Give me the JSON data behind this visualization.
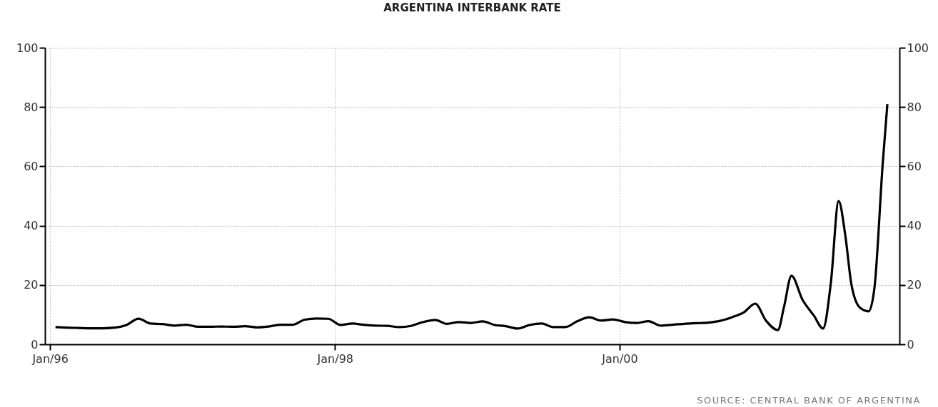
{
  "chart_data": {
    "type": "line",
    "title": "ARGENTINA INTERBANK RATE",
    "annotations": [
      "SOURCE: CENTRAL BANK OF ARGENTINA"
    ],
    "x": [
      "1996-01-15",
      "1996-02-15",
      "1996-03-15",
      "1996-04-15",
      "1996-05-15",
      "1996-06-15",
      "1996-07-15",
      "1996-08-15",
      "1996-09-15",
      "1996-10-15",
      "1996-11-15",
      "1996-12-15",
      "1997-01-15",
      "1997-02-15",
      "1997-03-15",
      "1997-04-15",
      "1997-05-15",
      "1997-06-15",
      "1997-07-15",
      "1997-08-15",
      "1997-09-15",
      "1997-10-15",
      "1997-11-15",
      "1997-12-15",
      "1998-01-15",
      "1998-02-15",
      "1998-03-15",
      "1998-04-15",
      "1998-05-15",
      "1998-06-15",
      "1998-07-15",
      "1998-08-15",
      "1998-09-15",
      "1998-10-15",
      "1998-11-15",
      "1998-12-15",
      "1999-01-15",
      "1999-02-15",
      "1999-03-15",
      "1999-04-15",
      "1999-05-15",
      "1999-06-15",
      "1999-07-15",
      "1999-08-15",
      "1999-09-15",
      "1999-10-15",
      "1999-11-15",
      "1999-12-15",
      "2000-01-15",
      "2000-02-15",
      "2000-03-15",
      "2000-04-15",
      "2000-05-15",
      "2000-06-15",
      "2000-07-15",
      "2000-08-15",
      "2000-09-15",
      "2000-10-15",
      "2000-11-15",
      "2000-12-14",
      "2001-01-11",
      "2001-02-10",
      "2001-02-26",
      "2001-03-17",
      "2001-04-14",
      "2001-05-14",
      "2001-06-06",
      "2001-06-26",
      "2001-07-16",
      "2001-08-02",
      "2001-08-18",
      "2001-09-09",
      "2001-10-01",
      "2001-10-16",
      "2001-11-06",
      "2001-11-18"
    ],
    "series": [
      {
        "color": "#000000",
        "values": [
          5.8,
          5.6,
          5.5,
          5.4,
          5.4,
          5.6,
          6.5,
          8.6,
          7.0,
          6.8,
          6.3,
          6.6,
          5.9,
          5.9,
          6.0,
          5.9,
          6.1,
          5.7,
          6.0,
          6.6,
          6.6,
          8.3,
          8.7,
          8.6,
          6.5,
          7.0,
          6.6,
          6.3,
          6.2,
          5.8,
          6.2,
          7.5,
          8.2,
          6.9,
          7.5,
          7.2,
          7.7,
          6.5,
          6.1,
          5.3,
          6.5,
          7.0,
          5.8,
          5.8,
          7.8,
          9.1,
          8.0,
          8.4,
          7.5,
          7.2,
          7.8,
          6.3,
          6.6,
          6.9,
          7.1,
          7.3,
          7.9,
          9.1,
          10.8,
          13.7,
          7.9,
          4.8,
          12.7,
          23.1,
          15.1,
          9.6,
          5.3,
          20.7,
          48.3,
          36.8,
          20.0,
          12.3,
          11.1,
          19.2,
          60.8,
          81.0
        ]
      }
    ],
    "xlim": [
      "1995-12-19",
      "2001-12-19"
    ],
    "xticks": [
      {
        "value": "1996-01-01",
        "label": "Jan/96"
      },
      {
        "value": "1998-01-01",
        "label": "Jan/98"
      },
      {
        "value": "2000-01-01",
        "label": "Jan/00"
      }
    ],
    "ylim": [
      0,
      100
    ],
    "yticks": [
      0,
      20,
      40,
      60,
      80,
      100
    ],
    "y2lim": [
      0,
      100
    ],
    "y2ticks": [
      0,
      20,
      40,
      60,
      80,
      100
    ],
    "grid": true,
    "line_style": "solid"
  }
}
